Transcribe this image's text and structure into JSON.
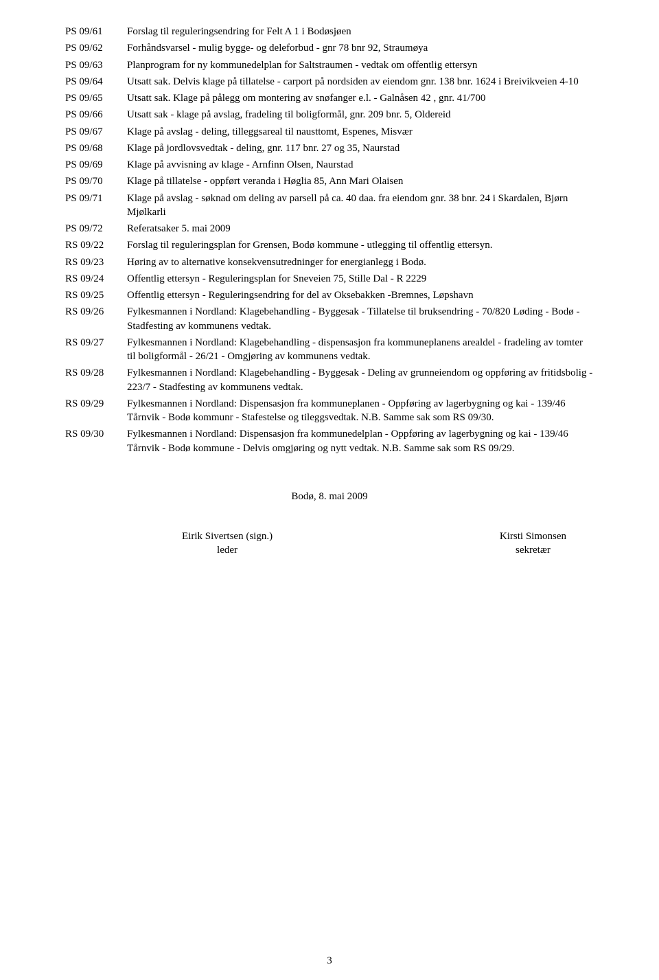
{
  "entries": [
    {
      "code": "PS 09/61",
      "text": "Forslag til reguleringsendring for Felt A 1 i Bodøsjøen"
    },
    {
      "code": "PS 09/62",
      "text": "Forhåndsvarsel - mulig bygge- og deleforbud - gnr 78 bnr 92, Straumøya"
    },
    {
      "code": "PS 09/63",
      "text": "Planprogram for ny kommunedelplan for Saltstraumen - vedtak om offentlig ettersyn"
    },
    {
      "code": "PS 09/64",
      "text": "Utsatt sak. Delvis klage på tillatelse - carport på nordsiden av eiendom gnr. 138 bnr. 1624 i Breivikveien 4-10"
    },
    {
      "code": "PS 09/65",
      "text": "Utsatt sak. Klage på pålegg om montering av snøfanger e.l. - Galnåsen 42 , gnr. 41/700"
    },
    {
      "code": "PS 09/66",
      "text": "Utsatt sak - klage på avslag, fradeling til boligformål, gnr. 209 bnr. 5, Oldereid"
    },
    {
      "code": "PS 09/67",
      "text": "Klage på avslag - deling, tilleggsareal til nausttomt, Espenes, Misvær"
    },
    {
      "code": "PS 09/68",
      "text": "Klage på jordlovsvedtak - deling, gnr. 117 bnr. 27 og 35, Naurstad"
    },
    {
      "code": "PS 09/69",
      "text": "Klage på avvisning av klage - Arnfinn Olsen, Naurstad"
    },
    {
      "code": "PS 09/70",
      "text": "Klage på tillatelse - oppført veranda i Høglia 85, Ann Mari Olaisen"
    },
    {
      "code": "PS 09/71",
      "text": "Klage på avslag - søknad om deling av parsell på ca. 40 daa. fra eiendom gnr. 38 bnr. 24 i Skardalen, Bjørn Mjølkarli"
    },
    {
      "code": "PS 09/72",
      "text": "Referatsaker 5. mai 2009"
    },
    {
      "code": "RS 09/22",
      "text": "Forslag til reguleringsplan for Grensen, Bodø kommune - utlegging til offentlig ettersyn."
    },
    {
      "code": "RS 09/23",
      "text": "Høring av to alternative konsekvensutredninger for energianlegg i Bodø."
    },
    {
      "code": "RS 09/24",
      "text": "Offentlig ettersyn - Reguleringsplan for Sneveien 75, Stille Dal - R 2229"
    },
    {
      "code": "RS 09/25",
      "text": "Offentlig ettersyn - Reguleringsendring for del av Oksebakken -Bremnes, Løpshavn"
    },
    {
      "code": "RS 09/26",
      "text": "Fylkesmannen i Nordland: Klagebehandling - Byggesak - Tillatelse til bruksendring - 70/820 Løding - Bodø - Stadfesting av kommunens vedtak."
    },
    {
      "code": "RS 09/27",
      "text": "Fylkesmannen i Nordland:  Klagebehandling - dispensasjon fra kommuneplanens arealdel - fradeling av tomter til boligformål - 26/21 - Omgjøring av kommunens vedtak."
    },
    {
      "code": "RS 09/28",
      "text": "Fylkesmannen i Nordland: Klagebehandling - Byggesak - Deling av grunneiendom og oppføring av fritidsbolig - 223/7 - Stadfesting av kommunens vedtak."
    },
    {
      "code": "RS 09/29",
      "text": "Fylkesmannen i Nordland:  Dispensasjon fra kommuneplanen - Oppføring av lagerbygning og kai - 139/46 Tårnvik - Bodø kommunr - Stafestelse og tileggsvedtak. N.B. Samme sak som RS 09/30."
    },
    {
      "code": "RS 09/30",
      "text": "Fylkesmannen i Nordland:  Dispensasjon fra kommunedelplan - Oppføring av lagerbygning og kai - 139/46 Tårnvik - Bodø kommune - Delvis omgjøring og nytt vedtak.  N.B. Samme sak som RS 09/29."
    }
  ],
  "footer": {
    "date": "Bodø, 8. mai 2009",
    "left_name": "Eirik Sivertsen (sign.)",
    "left_role": "leder",
    "right_name": "Kirsti Simonsen",
    "right_role": "sekretær"
  },
  "page_number": "3"
}
